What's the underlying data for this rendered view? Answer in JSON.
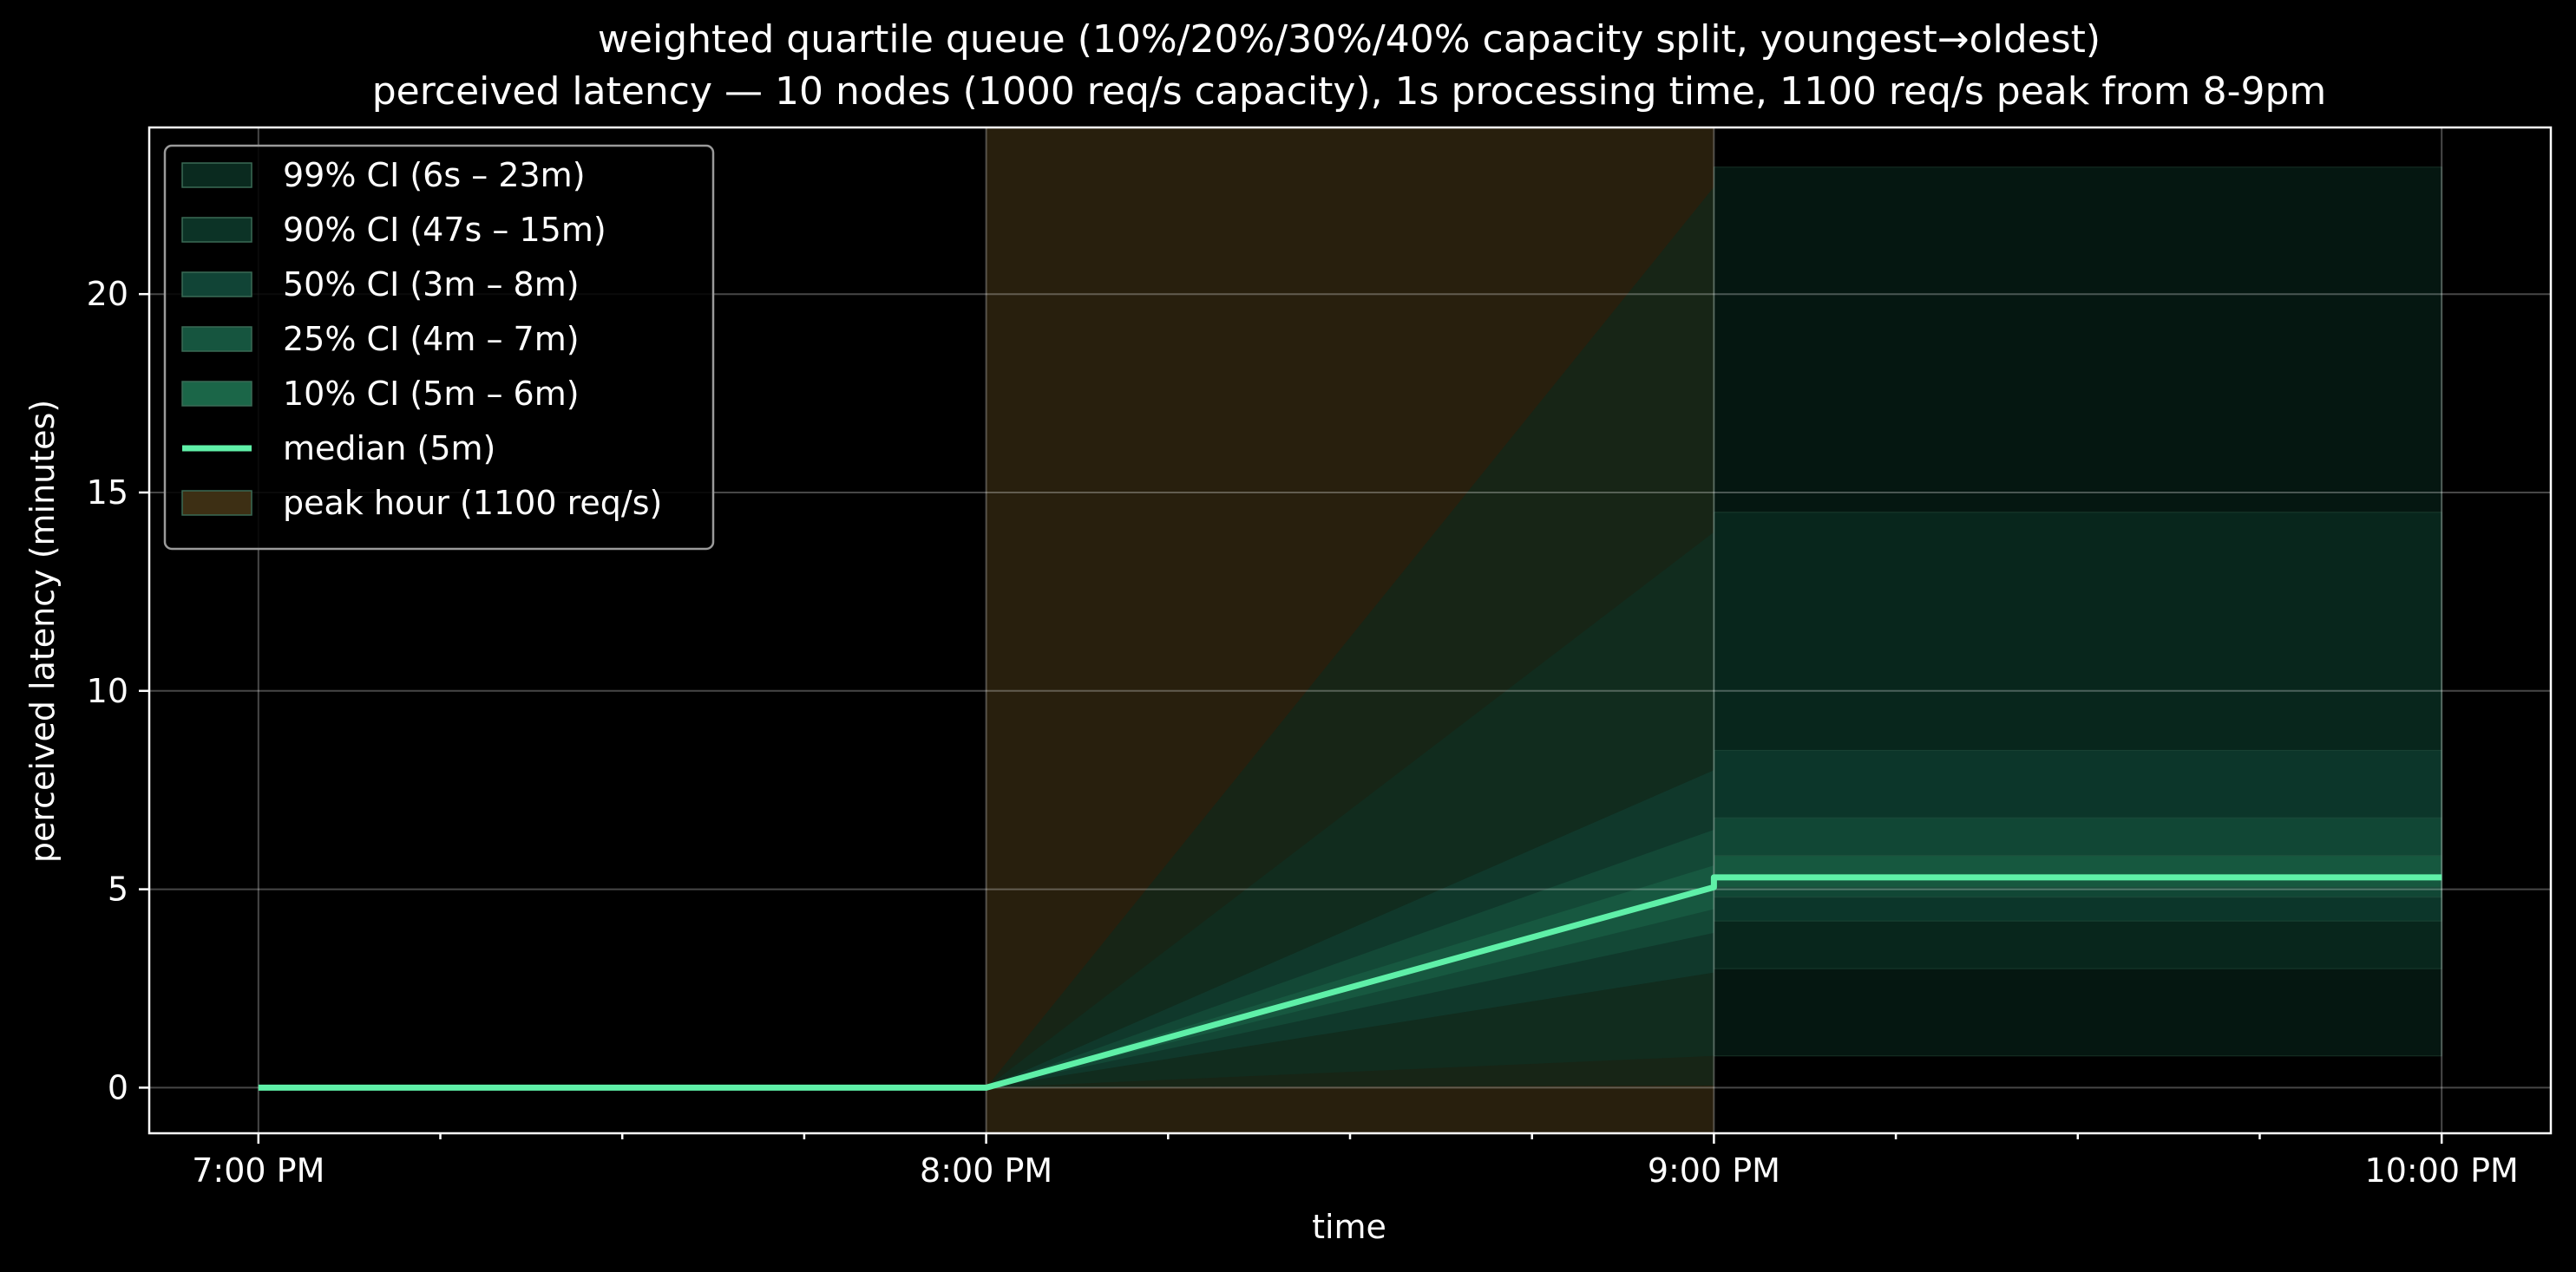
{
  "chart_data": {
    "type": "area",
    "title": "weighted quartile queue (10%/20%/30%/40% capacity split, youngest→oldest)",
    "subtitle": "perceived latency — 10 nodes (1000 req/s capacity), 1s processing time, 1100 req/s peak from 8-9pm",
    "xlabel": "time",
    "ylabel": "perceived latency (minutes)",
    "x_ticks": [
      {
        "hour": 19,
        "label": "7:00 PM"
      },
      {
        "hour": 20,
        "label": "8:00 PM"
      },
      {
        "hour": 21,
        "label": "9:00 PM"
      },
      {
        "hour": 22,
        "label": "10:00 PM"
      }
    ],
    "xlim": [
      18.85,
      22.15
    ],
    "ylim": [
      -1.15,
      24.2
    ],
    "y_ticks": [
      0,
      5,
      10,
      15,
      20
    ],
    "grid": true,
    "legend_position": "top-left",
    "peak_window": {
      "label": "peak hour (1100 req/s)",
      "start_hour": 20,
      "end_hour": 21,
      "color": "#3d2f14"
    },
    "median": {
      "label": "median (5m)",
      "color": "#5ff0a8",
      "points": [
        [
          19,
          0
        ],
        [
          20,
          0
        ],
        [
          21,
          5.05
        ],
        [
          21.0,
          5.3
        ],
        [
          22,
          5.3
        ]
      ]
    },
    "bands": [
      {
        "label": "99% CI (6s – 23m)",
        "color": "#0a2a1f",
        "low_at_9": 0.05,
        "high_at_9": 22.7,
        "low_after": 0.8,
        "high_after": 23.2
      },
      {
        "label": "90% CI (47s – 15m)",
        "color": "#0c3326",
        "low_at_9": 0.8,
        "high_at_9": 14.0,
        "low_after": 3.0,
        "high_after": 14.5
      },
      {
        "label": "50% CI (3m – 8m)",
        "color": "#114436",
        "low_at_9": 2.9,
        "high_at_9": 8.0,
        "low_after": 4.2,
        "high_after": 8.5
      },
      {
        "label": "25% CI (4m – 7m)",
        "color": "#16553f",
        "low_at_9": 3.9,
        "high_at_9": 6.5,
        "low_after": 4.8,
        "high_after": 6.8
      },
      {
        "label": "10% CI (5m – 6m)",
        "color": "#1b6648",
        "low_at_9": 4.5,
        "high_at_9": 5.6,
        "low_after": 5.05,
        "high_after": 5.85
      }
    ]
  }
}
